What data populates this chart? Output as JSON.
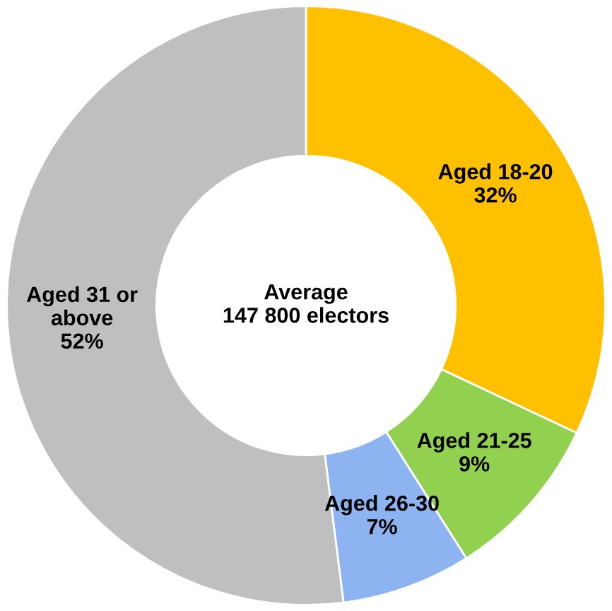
{
  "chart_data": {
    "type": "donut",
    "categories": [
      "Aged 18-20",
      "Aged 21-25",
      "Aged 26-30",
      "Aged 31 or\nabove"
    ],
    "values": [
      32,
      9,
      7,
      52
    ],
    "value_labels": [
      "32%",
      "9%",
      "7%",
      "52%"
    ],
    "colors": [
      "#ffc000",
      "#92d050",
      "#8db4f0",
      "#bfbfbf"
    ],
    "annotations": [
      "Average\n147 800 electors"
    ],
    "legend": false
  }
}
